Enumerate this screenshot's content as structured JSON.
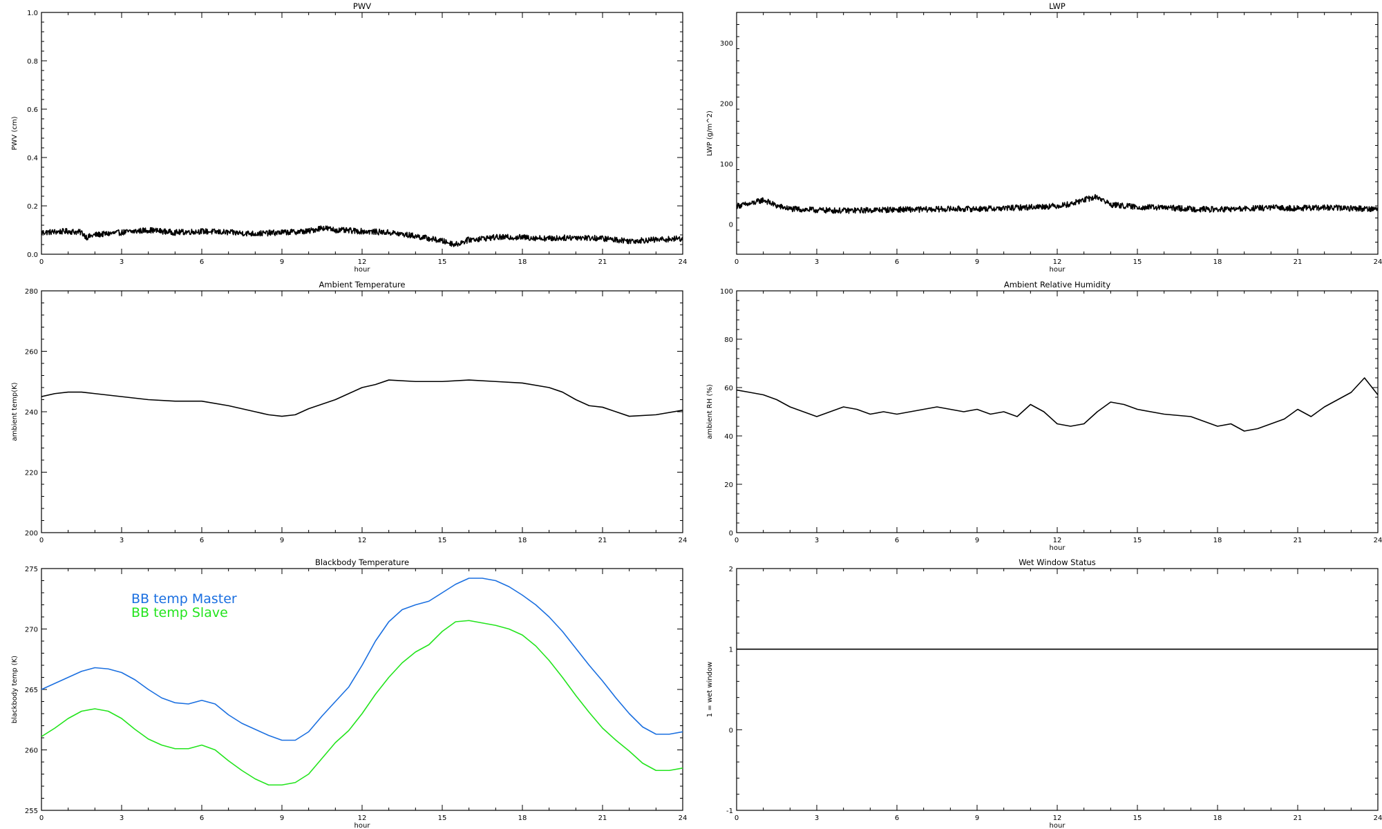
{
  "chart_data": [
    {
      "type": "line",
      "title": "PWV",
      "xlabel": "hour",
      "ylabel": "PWV (cm)",
      "xlim": [
        0,
        24
      ],
      "ylim": [
        0,
        1.0
      ],
      "xticks": [
        0,
        3,
        6,
        9,
        12,
        15,
        18,
        21,
        24
      ],
      "yticks": [
        "0.0",
        "0.2",
        "0.4",
        "0.6",
        "0.8",
        "1.0"
      ],
      "series": [
        {
          "color": "#000000",
          "noisy": true,
          "x": [
            0,
            1,
            1.5,
            1.7,
            2,
            3,
            4,
            5,
            6,
            7,
            8,
            9,
            10,
            10.5,
            11,
            12,
            13,
            14,
            15,
            15.5,
            16,
            17,
            18,
            19,
            20,
            21,
            22,
            23,
            24
          ],
          "y": [
            0.09,
            0.095,
            0.09,
            0.07,
            0.08,
            0.09,
            0.1,
            0.09,
            0.095,
            0.09,
            0.085,
            0.09,
            0.095,
            0.11,
            0.1,
            0.095,
            0.09,
            0.075,
            0.055,
            0.04,
            0.06,
            0.07,
            0.07,
            0.065,
            0.07,
            0.065,
            0.055,
            0.06,
            0.065
          ]
        }
      ]
    },
    {
      "type": "line",
      "title": "LWP",
      "xlabel": "hour",
      "ylabel": "LWP (g/m^2)",
      "xlim": [
        0,
        24
      ],
      "ylim": [
        -50,
        350
      ],
      "xticks": [
        0,
        3,
        6,
        9,
        12,
        15,
        18,
        21,
        24
      ],
      "yticks": [
        "0",
        "100",
        "200",
        "300"
      ],
      "series": [
        {
          "color": "#000000",
          "noisy": true,
          "x": [
            0,
            0.5,
            1,
            1.5,
            2,
            3,
            4,
            5,
            6,
            7,
            8,
            9,
            10,
            11,
            12,
            12.5,
            13,
            13.5,
            14,
            15,
            16,
            17,
            18,
            19,
            20,
            21,
            22,
            23,
            24
          ],
          "y": [
            30,
            33,
            40,
            30,
            25,
            23,
            22,
            23,
            24,
            24,
            25,
            25,
            26,
            28,
            30,
            33,
            40,
            45,
            32,
            28,
            27,
            25,
            24,
            25,
            27,
            26,
            27,
            26,
            25
          ]
        }
      ]
    },
    {
      "type": "line",
      "title": "Ambient Temperature",
      "xlabel": "",
      "ylabel": "ambient temp(K)",
      "xlim": [
        0,
        24
      ],
      "ylim": [
        200,
        280
      ],
      "xticks": [
        0,
        3,
        6,
        9,
        12,
        15,
        18,
        21,
        24
      ],
      "yticks": [
        "200",
        "220",
        "240",
        "260",
        "280"
      ],
      "series": [
        {
          "color": "#000000",
          "noisy": false,
          "x": [
            0,
            0.5,
            1,
            1.5,
            2,
            3,
            4,
            5,
            6,
            7,
            8,
            8.5,
            9,
            9.5,
            10,
            11,
            11.5,
            12,
            12.5,
            13,
            14,
            15,
            16,
            17,
            18,
            19,
            19.5,
            20,
            20.5,
            21,
            21.5,
            22,
            23,
            24
          ],
          "y": [
            245,
            246,
            246.5,
            246.5,
            246,
            245,
            244,
            243.5,
            243.5,
            242,
            240,
            239,
            238.5,
            239,
            241,
            244,
            246,
            248,
            249,
            250.5,
            250,
            250,
            250.5,
            250,
            249.5,
            248,
            246.5,
            244,
            242,
            241.5,
            240,
            238.5,
            239,
            240.5
          ]
        }
      ]
    },
    {
      "type": "line",
      "title": "Ambient Relative Humidity",
      "xlabel": "hour",
      "ylabel": "ambient RH (%)",
      "xlim": [
        0,
        24
      ],
      "ylim": [
        0,
        100
      ],
      "xticks": [
        0,
        3,
        6,
        9,
        12,
        15,
        18,
        21,
        24
      ],
      "yticks": [
        "0",
        "20",
        "40",
        "60",
        "80",
        "100"
      ],
      "series": [
        {
          "color": "#000000",
          "noisy": false,
          "x": [
            0,
            0.5,
            1,
            1.5,
            2,
            2.5,
            3,
            3.5,
            4,
            4.5,
            5,
            5.5,
            6,
            7,
            7.5,
            8,
            8.5,
            9,
            9.5,
            10,
            10.5,
            11,
            11.5,
            12,
            12.5,
            13,
            13.5,
            14,
            14.5,
            15,
            16,
            17,
            17.5,
            18,
            18.5,
            19,
            19.5,
            20,
            20.5,
            21,
            21.5,
            22,
            22.5,
            23,
            23.5,
            24
          ],
          "y": [
            59,
            58,
            57,
            55,
            52,
            50,
            48,
            50,
            52,
            51,
            49,
            50,
            49,
            51,
            52,
            51,
            50,
            51,
            49,
            50,
            48,
            53,
            50,
            45,
            44,
            45,
            50,
            54,
            53,
            51,
            49,
            48,
            46,
            44,
            45,
            42,
            43,
            45,
            47,
            51,
            48,
            52,
            55,
            58,
            64,
            57
          ]
        }
      ]
    },
    {
      "type": "line",
      "title": "Blackbody Temperature",
      "xlabel": "hour",
      "ylabel": "blackbody temp (K)",
      "xlim": [
        0,
        24
      ],
      "ylim": [
        255,
        275
      ],
      "xticks": [
        0,
        3,
        6,
        9,
        12,
        15,
        18,
        21,
        24
      ],
      "yticks": [
        "255",
        "260",
        "265",
        "270",
        "275"
      ],
      "legend_placement": "upper-left",
      "series": [
        {
          "name": "BB temp Master",
          "color": "#1a6fe0",
          "noisy": false,
          "x": [
            0,
            0.5,
            1,
            1.5,
            2,
            2.5,
            3,
            3.5,
            4,
            4.5,
            5,
            5.5,
            6,
            6.5,
            7,
            7.5,
            8,
            8.5,
            9,
            9.5,
            10,
            10.5,
            11,
            11.5,
            12,
            12.5,
            13,
            13.5,
            14,
            14.5,
            15,
            15.5,
            16,
            16.5,
            17,
            17.5,
            18,
            18.5,
            19,
            19.5,
            20,
            20.5,
            21,
            21.5,
            22,
            22.5,
            23,
            23.5,
            24
          ],
          "y": [
            265,
            265.5,
            266,
            266.5,
            266.8,
            266.7,
            266.4,
            265.8,
            265,
            264.3,
            263.9,
            263.8,
            264.1,
            263.8,
            262.9,
            262.2,
            261.7,
            261.2,
            260.8,
            260.8,
            261.5,
            262.8,
            264,
            265.2,
            267,
            269,
            270.6,
            271.6,
            272,
            272.3,
            273,
            273.7,
            274.2,
            274.2,
            274,
            273.5,
            272.8,
            272,
            271,
            269.8,
            268.4,
            267,
            265.7,
            264.3,
            263,
            261.9,
            261.3,
            261.3,
            261.5
          ]
        },
        {
          "name": "BB temp Slave",
          "color": "#22e41c",
          "noisy": false,
          "x": [
            0,
            0.5,
            1,
            1.5,
            2,
            2.5,
            3,
            3.5,
            4,
            4.5,
            5,
            5.5,
            6,
            6.5,
            7,
            7.5,
            8,
            8.5,
            9,
            9.5,
            10,
            10.5,
            11,
            11.5,
            12,
            12.5,
            13,
            13.5,
            14,
            14.5,
            15,
            15.5,
            16,
            16.5,
            17,
            17.5,
            18,
            18.5,
            19,
            19.5,
            20,
            20.5,
            21,
            21.5,
            22,
            22.5,
            23,
            23.5,
            24
          ],
          "y": [
            261.1,
            261.8,
            262.6,
            263.2,
            263.4,
            263.2,
            262.6,
            261.7,
            260.9,
            260.4,
            260.1,
            260.1,
            260.4,
            260,
            259.1,
            258.3,
            257.6,
            257.1,
            257.1,
            257.3,
            258,
            259.3,
            260.6,
            261.6,
            263,
            264.6,
            266,
            267.2,
            268.1,
            268.7,
            269.8,
            270.6,
            270.7,
            270.5,
            270.3,
            270,
            269.5,
            268.6,
            267.4,
            266,
            264.5,
            263.1,
            261.8,
            260.8,
            259.9,
            258.9,
            258.3,
            258.3,
            258.5
          ]
        }
      ]
    },
    {
      "type": "line",
      "title": "Wet Window Status",
      "xlabel": "hour",
      "ylabel": "1 = wet window",
      "xlim": [
        0,
        24
      ],
      "ylim": [
        -1,
        2
      ],
      "xticks": [
        0,
        3,
        6,
        9,
        12,
        15,
        18,
        21,
        24
      ],
      "yticks": [
        "-1",
        "0",
        "1",
        "2"
      ],
      "series": [
        {
          "color": "#000000",
          "noisy": false,
          "x": [
            0,
            24
          ],
          "y": [
            1,
            1
          ]
        }
      ]
    }
  ]
}
